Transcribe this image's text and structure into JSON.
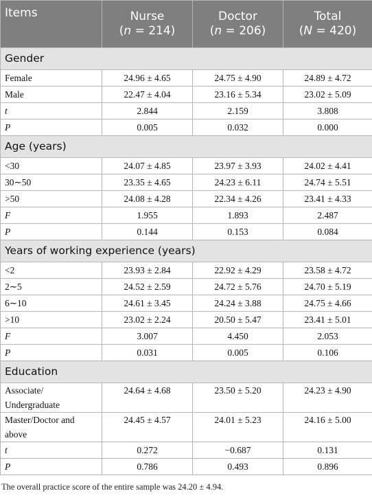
{
  "table": {
    "header": [
      {
        "text": "Items"
      },
      {
        "name": "Nurse",
        "sample": [
          "(",
          "n",
          " = 214)"
        ]
      },
      {
        "name": "Doctor",
        "sample": [
          "(",
          "n",
          " = 206)"
        ]
      },
      {
        "name": "Total",
        "sample": [
          "(",
          "N",
          " = 420)"
        ]
      }
    ],
    "sections": [
      {
        "title": "Gender",
        "rows": [
          {
            "label": "Female",
            "cells": [
              "24.96 ± 4.65",
              "24.75 ± 4.90",
              "24.89 ± 4.72"
            ]
          },
          {
            "label": "Male",
            "cells": [
              "22.47 ± 4.04",
              "23.16 ± 5.34",
              "23.02 ± 5.09"
            ]
          },
          {
            "label": "t",
            "italic": true,
            "cells": [
              "2.844",
              "2.159",
              "3.808"
            ]
          },
          {
            "label": "P",
            "italic": true,
            "cells": [
              "0.005",
              "0.032",
              "0.000"
            ]
          }
        ]
      },
      {
        "title": "Age (years)",
        "rows": [
          {
            "label": "<30",
            "cells": [
              "24.07 ± 4.85",
              "23.97 ± 3.93",
              "24.02 ± 4.41"
            ]
          },
          {
            "label": "30∼50",
            "cells": [
              "23.35 ± 4.65",
              "24.23 ± 6.11",
              "24.74 ± 5.51"
            ]
          },
          {
            "label": ">50",
            "cells": [
              "24.08 ± 4.28",
              "22.34 ± 4.26",
              "23.41 ± 4.33"
            ]
          },
          {
            "label": "F",
            "italic": true,
            "cells": [
              "1.955",
              "1.893",
              "2.487"
            ]
          },
          {
            "label": "P",
            "italic": true,
            "cells": [
              "0.144",
              "0.153",
              "0.084"
            ]
          }
        ]
      },
      {
        "title": "Years of working experience (years)",
        "rows": [
          {
            "label": "<2",
            "cells": [
              "23.93 ± 2.84",
              "22.92 ± 4.29",
              "23.58 ± 4.72"
            ]
          },
          {
            "label": "2∼5",
            "cells": [
              "24.52 ± 2.59",
              "24.72 ± 5.76",
              "24.70 ± 5.19"
            ]
          },
          {
            "label": "6∼10",
            "cells": [
              "24.61 ± 3.45",
              "24.24 ± 3.88",
              "24.75 ± 4.66"
            ]
          },
          {
            "label": ">10",
            "cells": [
              "23.02 ± 2.24",
              "20.50 ± 5.47",
              "23.41 ± 5.01"
            ]
          },
          {
            "label": "F",
            "italic": true,
            "cells": [
              "3.007",
              "4.450",
              "2.053"
            ]
          },
          {
            "label": "P",
            "italic": true,
            "cells": [
              "0.031",
              "0.005",
              "0.106"
            ]
          }
        ]
      },
      {
        "title": "Education",
        "rows": [
          {
            "label": "Associate/ Undergraduate",
            "cells": [
              "24.64 ± 4.68",
              "23.50 ± 5.20",
              "24.23 ± 4.90"
            ]
          },
          {
            "label": "Master/Doctor and above",
            "cells": [
              "24.45 ± 4.57",
              "24.01 ± 5.23",
              "24.16 ± 5.00"
            ]
          },
          {
            "label": "t",
            "italic": true,
            "cells": [
              "0.272",
              "−0.687",
              "0.131"
            ]
          },
          {
            "label": "P",
            "italic": true,
            "cells": [
              "0.786",
              "0.493",
              "0.896"
            ]
          }
        ]
      }
    ]
  },
  "note": "The overall practice score of the entire sample was 24.20 ± 4.94."
}
